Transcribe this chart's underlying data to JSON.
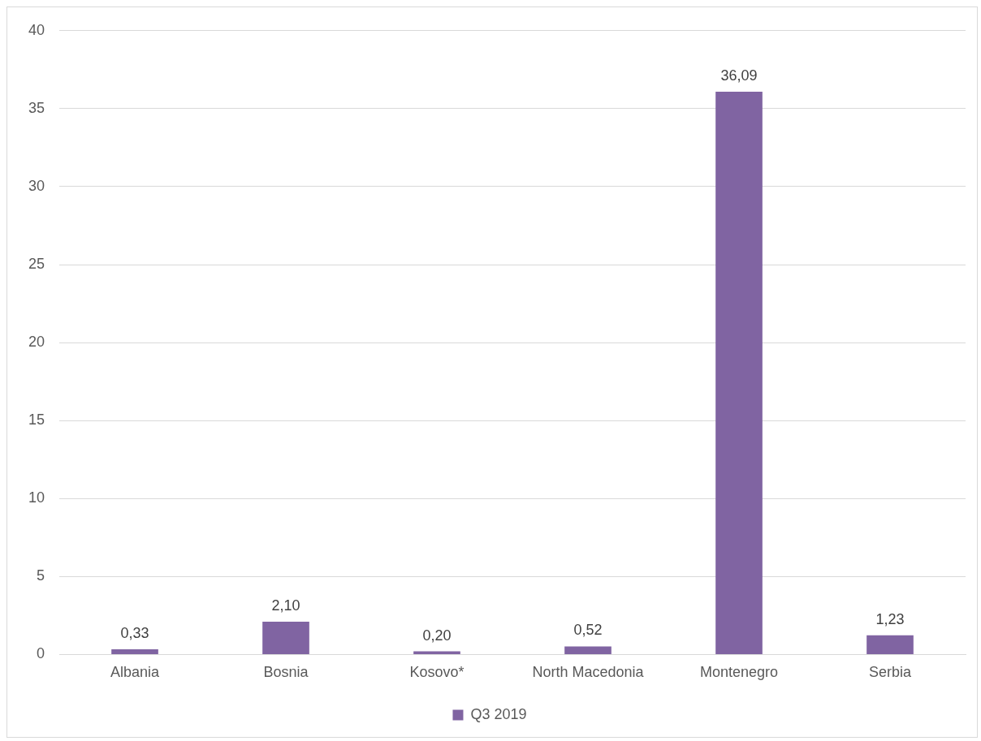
{
  "chart_data": {
    "type": "bar",
    "categories": [
      "Albania",
      "Bosnia",
      "Kosovo*",
      "North Macedonia",
      "Montenegro",
      "Serbia"
    ],
    "series": [
      {
        "name": "Q3 2019",
        "color": "#8064a2",
        "values": [
          0.33,
          2.1,
          0.2,
          0.52,
          36.09,
          1.23
        ]
      }
    ],
    "value_labels": [
      "0,33",
      "2,10",
      "0,20",
      "0,52",
      "36,09",
      "1,23"
    ],
    "ylim": [
      0,
      40
    ],
    "yticks": [
      0,
      5,
      10,
      15,
      20,
      25,
      30,
      35,
      40
    ],
    "grid": "y",
    "legend": "bottom"
  }
}
